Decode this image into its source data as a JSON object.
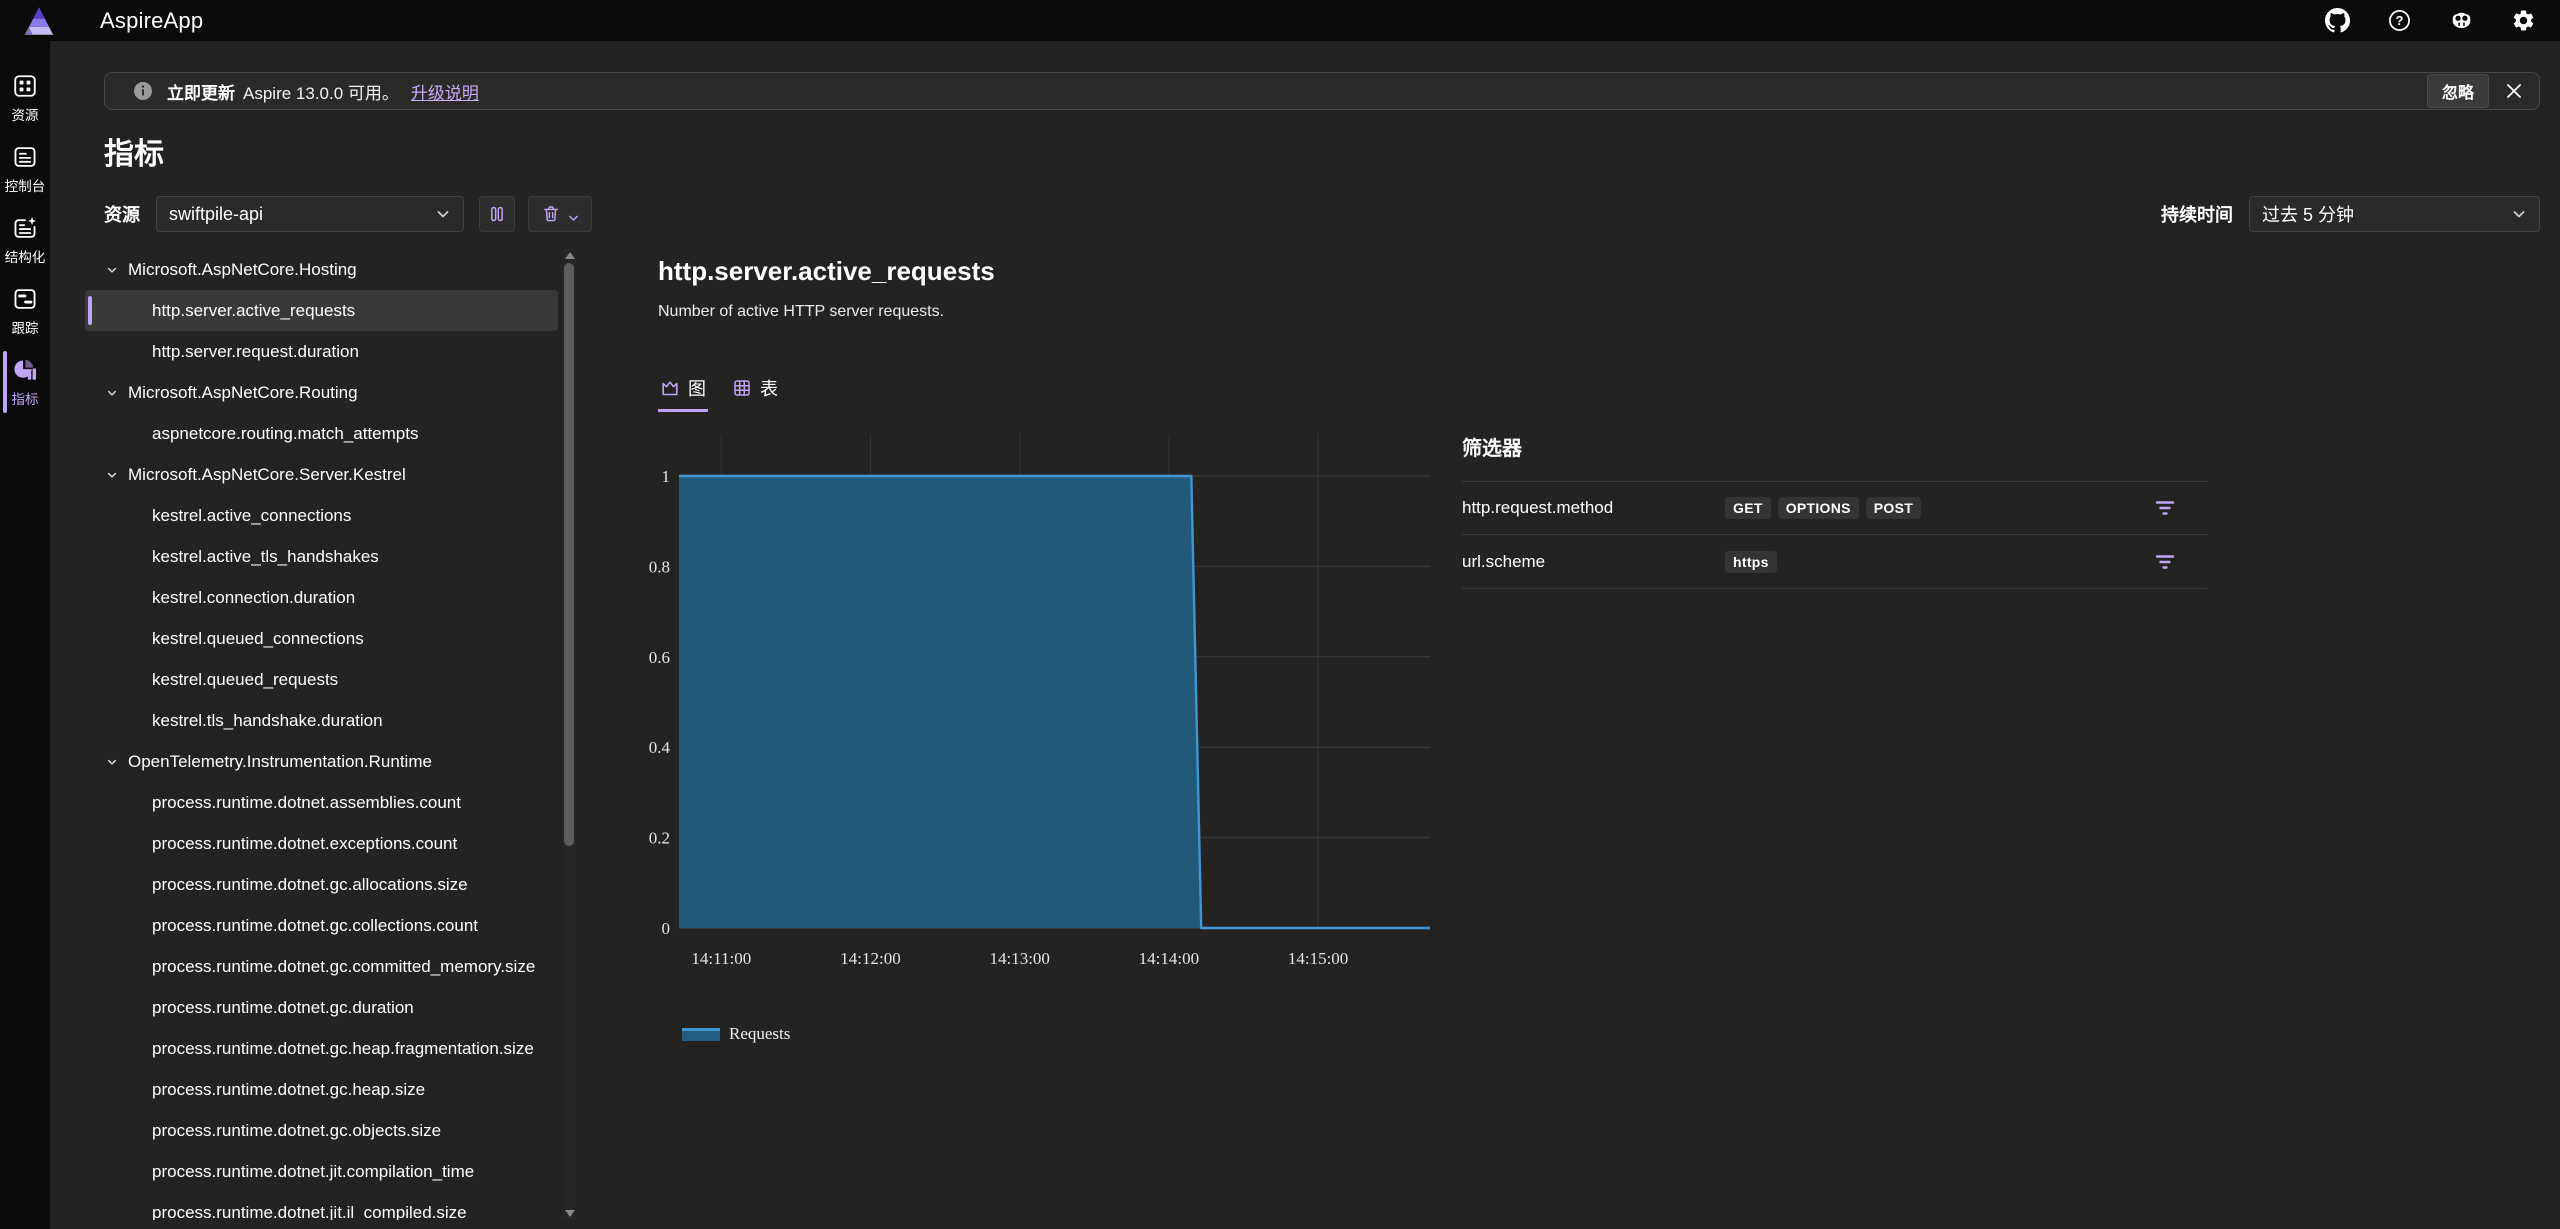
{
  "topbar": {
    "title": "AspireApp",
    "actions": [
      {
        "icon": "github",
        "name": "github-icon"
      },
      {
        "icon": "help",
        "name": "help-icon"
      },
      {
        "icon": "copilot",
        "name": "copilot-icon"
      },
      {
        "icon": "settings",
        "name": "gear-icon"
      }
    ]
  },
  "sidebar": {
    "items": [
      {
        "label": "资源",
        "icon": "grid",
        "active": false
      },
      {
        "label": "控制台",
        "icon": "console",
        "active": false
      },
      {
        "label": "结构化",
        "icon": "structured",
        "active": false
      },
      {
        "label": "跟踪",
        "icon": "traces",
        "active": false
      },
      {
        "label": "指标",
        "icon": "metrics",
        "active": true
      }
    ]
  },
  "banner": {
    "bold": "立即更新",
    "text": "Aspire 13.0.0 可用。",
    "link": "升级说明",
    "dismiss": "忽略"
  },
  "page": {
    "title": "指标"
  },
  "toolbar": {
    "resource_label": "资源",
    "resource_value": "swiftpile-api",
    "duration_label": "持续时间",
    "duration_value": "过去 5 分钟"
  },
  "tree": {
    "items": [
      {
        "type": "group",
        "label": "Microsoft.AspNetCore.Hosting"
      },
      {
        "type": "leaf",
        "label": "http.server.active_requests",
        "selected": true
      },
      {
        "type": "leaf",
        "label": "http.server.request.duration"
      },
      {
        "type": "group",
        "label": "Microsoft.AspNetCore.Routing"
      },
      {
        "type": "leaf",
        "label": "aspnetcore.routing.match_attempts"
      },
      {
        "type": "group",
        "label": "Microsoft.AspNetCore.Server.Kestrel"
      },
      {
        "type": "leaf",
        "label": "kestrel.active_connections"
      },
      {
        "type": "leaf",
        "label": "kestrel.active_tls_handshakes"
      },
      {
        "type": "leaf",
        "label": "kestrel.connection.duration"
      },
      {
        "type": "leaf",
        "label": "kestrel.queued_connections"
      },
      {
        "type": "leaf",
        "label": "kestrel.queued_requests"
      },
      {
        "type": "leaf",
        "label": "kestrel.tls_handshake.duration"
      },
      {
        "type": "group",
        "label": "OpenTelemetry.Instrumentation.Runtime"
      },
      {
        "type": "leaf",
        "label": "process.runtime.dotnet.assemblies.count"
      },
      {
        "type": "leaf",
        "label": "process.runtime.dotnet.exceptions.count"
      },
      {
        "type": "leaf",
        "label": "process.runtime.dotnet.gc.allocations.size"
      },
      {
        "type": "leaf",
        "label": "process.runtime.dotnet.gc.collections.count"
      },
      {
        "type": "leaf",
        "label": "process.runtime.dotnet.gc.committed_memory.size"
      },
      {
        "type": "leaf",
        "label": "process.runtime.dotnet.gc.duration"
      },
      {
        "type": "leaf",
        "label": "process.runtime.dotnet.gc.heap.fragmentation.size"
      },
      {
        "type": "leaf",
        "label": "process.runtime.dotnet.gc.heap.size"
      },
      {
        "type": "leaf",
        "label": "process.runtime.dotnet.gc.objects.size"
      },
      {
        "type": "leaf",
        "label": "process.runtime.dotnet.jit.compilation_time"
      },
      {
        "type": "leaf",
        "label": "process.runtime.dotnet.jit.il_compiled.size"
      }
    ]
  },
  "metric": {
    "title": "http.server.active_requests",
    "description": "Number of active HTTP server requests.",
    "tabs": [
      {
        "label": "图",
        "icon": "chart-tab",
        "active": true
      },
      {
        "label": "表",
        "icon": "table-tab",
        "active": false
      }
    ]
  },
  "filters": {
    "heading": "筛选器",
    "rows": [
      {
        "name": "http.request.method",
        "values": [
          "GET",
          "OPTIONS",
          "POST"
        ]
      },
      {
        "name": "url.scheme",
        "values": [
          "https"
        ]
      }
    ]
  },
  "chart_data": {
    "type": "area",
    "title": "http.server.active_requests",
    "xlabel": "",
    "ylabel": "",
    "x_domain": [
      "14:10:43",
      "14:15:45"
    ],
    "x_ticks": [
      "14:11:00",
      "14:12:00",
      "14:13:00",
      "14:14:00",
      "14:15:00"
    ],
    "y_ticks": [
      0,
      0.2,
      0.4,
      0.6,
      0.8,
      1
    ],
    "ylim": [
      0,
      1.09
    ],
    "grid": true,
    "legend_position": "bottom-left",
    "series": [
      {
        "name": "Requests",
        "line_color": "#3f97d4",
        "fill_color": "#235d80",
        "points": [
          [
            "14:10:43",
            1
          ],
          [
            "14:14:09",
            1
          ],
          [
            "14:14:13",
            0
          ],
          [
            "14:15:45",
            0
          ]
        ]
      }
    ]
  }
}
